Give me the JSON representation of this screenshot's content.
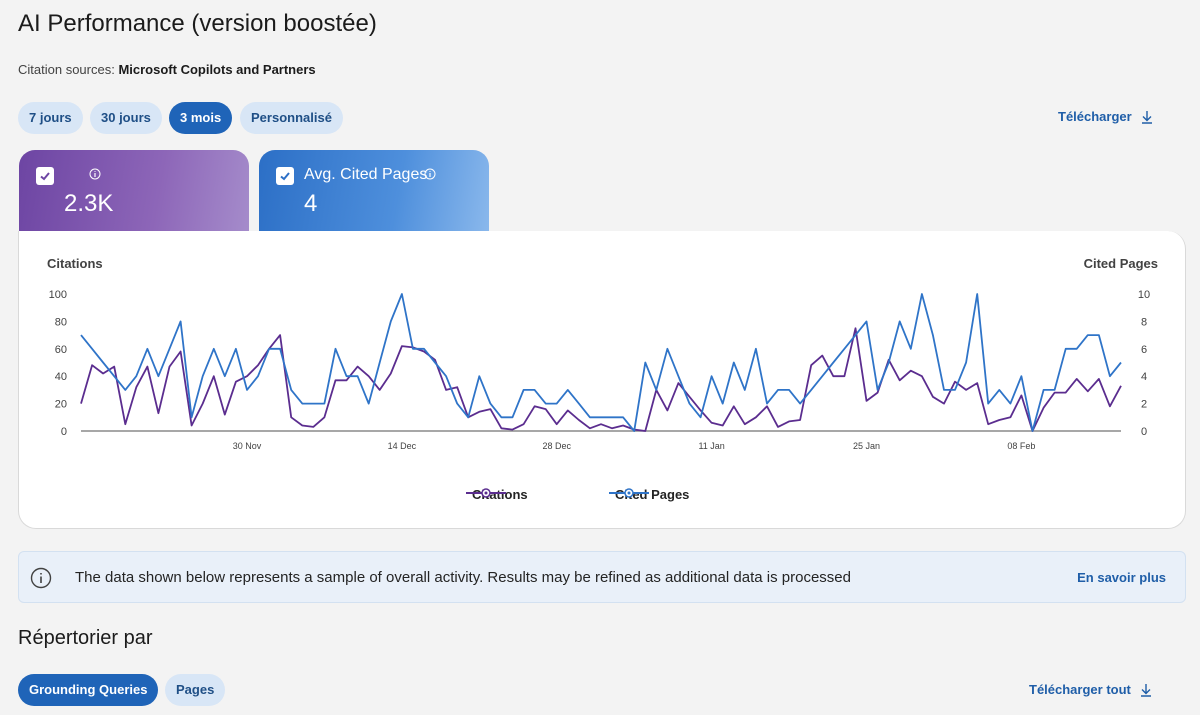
{
  "header": {
    "title": "AI Performance (version boostée)",
    "sources_label": "Citation sources:",
    "sources_value": "Microsoft Copilots and Partners"
  },
  "range_tabs": [
    {
      "label": "7 jours",
      "active": false
    },
    {
      "label": "30 jours",
      "active": false
    },
    {
      "label": "3 mois",
      "active": true
    },
    {
      "label": "Personnalisé",
      "active": false
    }
  ],
  "download_label": "Télécharger",
  "metrics": {
    "citations": {
      "label": "",
      "value": "2.3K",
      "checked": true
    },
    "cited_pages": {
      "label": "Avg. Cited Pages",
      "value": "4",
      "checked": true
    }
  },
  "colors": {
    "citations": "#5b2d8f",
    "cited_pages": "#2f74c8",
    "accent": "#1f64b8"
  },
  "chart_data": {
    "type": "line",
    "left_axis_title": "Citations",
    "right_axis_title": "Cited Pages",
    "y_left_ticks": [
      "100",
      "80",
      "60",
      "40",
      "20",
      "0"
    ],
    "y_right_ticks": [
      "10",
      "8",
      "6",
      "4",
      "2",
      "0"
    ],
    "ylim_left": [
      0,
      100
    ],
    "ylim_right": [
      0,
      10
    ],
    "x_tick_labels": [
      "30 Nov",
      "14 Dec",
      "28 Dec",
      "11 Jan",
      "25 Jan",
      "08 Feb"
    ],
    "x_tick_indices": [
      15,
      29,
      43,
      57,
      71,
      85
    ],
    "series": [
      {
        "name": "Citations",
        "axis": "left",
        "values": [
          20,
          48,
          42,
          47,
          5,
          32,
          47,
          13,
          47,
          58,
          4,
          20,
          40,
          12,
          36,
          40,
          48,
          60,
          70,
          10,
          4,
          3,
          10,
          37,
          37,
          47,
          40,
          30,
          42,
          62,
          61,
          58,
          52,
          30,
          32,
          10,
          14,
          16,
          2,
          1,
          5,
          18,
          16,
          5,
          15,
          8,
          2,
          5,
          2,
          4,
          1,
          0,
          30,
          15,
          35,
          25,
          15,
          6,
          4,
          18,
          5,
          10,
          18,
          3,
          7,
          8,
          48,
          55,
          40,
          40,
          75,
          22,
          28,
          52,
          37,
          44,
          40,
          25,
          20,
          36,
          30,
          35,
          5,
          8,
          10,
          26,
          0,
          17,
          28,
          28,
          38,
          29,
          38,
          18,
          33
        ],
        "color": "#5b2d8f"
      },
      {
        "name": "Cited Pages",
        "axis": "right",
        "values": [
          7,
          6,
          5,
          4,
          3,
          4,
          6,
          4,
          6,
          8,
          1,
          4,
          6,
          4,
          6,
          3,
          4,
          6,
          6,
          3,
          2,
          2,
          2,
          6,
          4,
          4,
          2,
          5,
          8,
          10,
          6,
          6,
          5,
          4,
          2,
          1,
          4,
          2,
          1,
          1,
          3,
          3,
          2,
          2,
          3,
          2,
          1,
          1,
          1,
          1,
          0,
          5,
          3,
          6,
          4,
          2,
          1,
          4,
          2,
          5,
          3,
          6,
          2,
          3,
          3,
          2,
          3,
          4,
          5,
          6,
          7,
          8,
          3,
          5,
          8,
          6,
          10,
          7,
          3,
          3,
          5,
          10,
          2,
          3,
          2,
          4,
          0,
          3,
          3,
          6,
          6,
          7,
          7,
          4,
          5
        ],
        "color": "#2f74c8"
      }
    ]
  },
  "legend": {
    "citations": "Citations",
    "cited_pages": "Cited Pages"
  },
  "info_banner": {
    "message": "The data shown below represents a sample of overall activity. Results may be refined as additional data is processed",
    "link": "En savoir plus"
  },
  "section": {
    "title": "Répertorier par"
  },
  "list_tabs": [
    {
      "label": "Grounding Queries",
      "active": true
    },
    {
      "label": "Pages",
      "active": false
    }
  ],
  "download_all_label": "Télécharger tout"
}
